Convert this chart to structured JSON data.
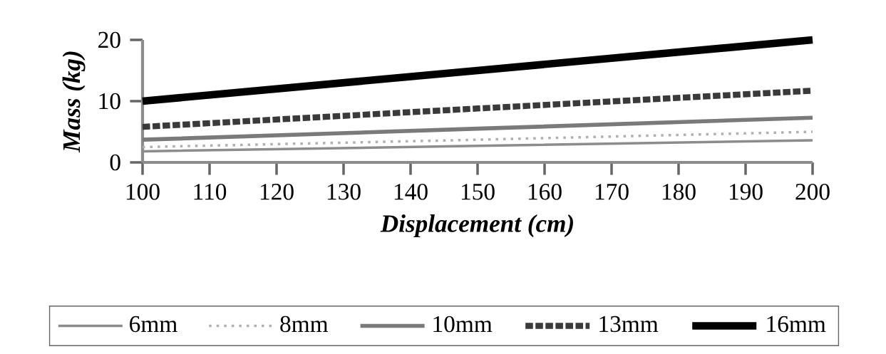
{
  "chart_data": {
    "type": "line",
    "xlabel": "Displacement (cm)",
    "ylabel": "Mass (kg)",
    "x": [
      100,
      150,
      200
    ],
    "series": [
      {
        "name": "6mm",
        "color": "#8c8c8c",
        "line_style": "solid",
        "values": [
          1.8,
          2.7,
          3.6
        ]
      },
      {
        "name": "8mm",
        "color": "#b0b0b0",
        "line_style": "dotted",
        "values": [
          2.5,
          3.7,
          5.0
        ]
      },
      {
        "name": "10mm",
        "color": "#7a7a7a",
        "line_style": "solid",
        "values": [
          3.7,
          5.5,
          7.3
        ]
      },
      {
        "name": "13mm",
        "color": "#3a3a3a",
        "line_style": "dashed",
        "values": [
          5.8,
          8.8,
          11.7
        ]
      },
      {
        "name": "16mm",
        "color": "#000000",
        "line_style": "solid",
        "values": [
          10,
          15,
          20
        ]
      }
    ],
    "xlim": [
      100,
      200
    ],
    "xticks": [
      100,
      110,
      120,
      130,
      140,
      150,
      160,
      170,
      180,
      190,
      200
    ],
    "ylim": [
      0,
      20
    ],
    "yticks": [
      0,
      10,
      20
    ],
    "legend": "bottom",
    "grid": false,
    "marker": "none"
  }
}
